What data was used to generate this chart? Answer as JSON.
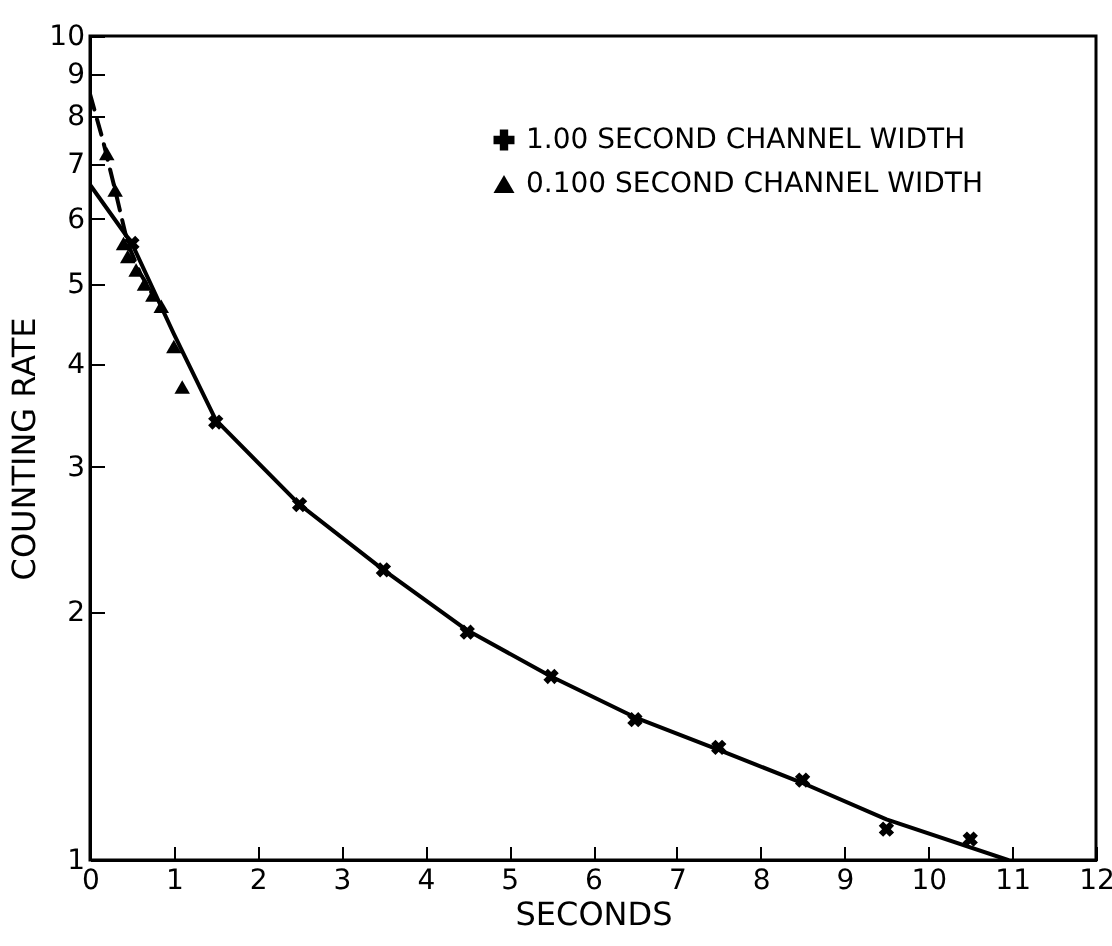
{
  "chart_data": {
    "type": "scatter",
    "xlabel": "SECONDS",
    "ylabel": "COUNTING RATE",
    "log": "y",
    "xlim": [
      0,
      12
    ],
    "ylim": [
      1,
      10
    ],
    "xticks": [
      0,
      1,
      2,
      3,
      4,
      5,
      6,
      7,
      8,
      9,
      10,
      11,
      12
    ],
    "yticks": [
      1,
      2,
      3,
      4,
      5,
      6,
      7,
      8,
      9,
      10
    ],
    "grid": false,
    "legend": "top right",
    "series": [
      {
        "name": "1.00 SECOND CHANNEL WIDTH",
        "marker": "cross",
        "color": "#000000",
        "x": [
          0.5,
          1.5,
          2.5,
          3.5,
          4.5,
          5.5,
          6.5,
          7.5,
          8.5,
          9.5,
          10.5
        ],
        "values": [
          5.6,
          3.4,
          2.7,
          2.25,
          1.89,
          1.67,
          1.48,
          1.37,
          1.25,
          1.09,
          1.06
        ]
      },
      {
        "name": "0.100 SECOND CHANNEL WIDTH",
        "marker": "triangle",
        "color": "#000000",
        "x": [
          0.2,
          0.3,
          0.4,
          0.45,
          0.55,
          0.65,
          0.75,
          0.85,
          1.0,
          1.1
        ],
        "values": [
          7.2,
          6.5,
          5.6,
          5.4,
          5.2,
          5.0,
          4.85,
          4.7,
          4.2,
          3.75
        ]
      },
      {
        "type": "line",
        "marker": "none",
        "line_style": "solid",
        "color": "#000000",
        "x": [
          0,
          0.5,
          1,
          1.5,
          2.5,
          3.5,
          4.5,
          5.5,
          6.5,
          7.5,
          8.5,
          9.5,
          10.95
        ],
        "values": [
          6.6,
          5.6,
          4.35,
          3.42,
          2.7,
          2.25,
          1.9,
          1.67,
          1.49,
          1.36,
          1.24,
          1.12,
          1.0
        ]
      },
      {
        "type": "line",
        "marker": "none",
        "line_style": "dashed",
        "color": "#000000",
        "x": [
          0,
          0.15,
          0.3,
          0.45,
          0.6,
          0.75
        ],
        "values": [
          8.5,
          7.5,
          6.5,
          5.6,
          5.15,
          4.85
        ]
      }
    ]
  }
}
